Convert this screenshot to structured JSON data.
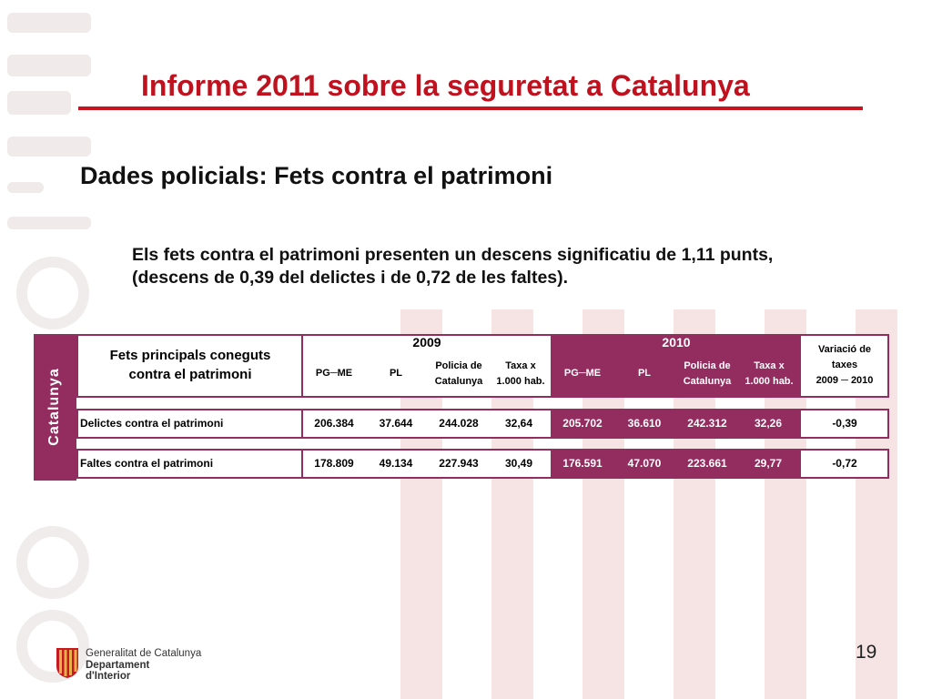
{
  "slide": {
    "title": "Informe 2011 sobre la seguretat a Catalunya",
    "subtitle": "Dades policials: Fets contra el patrimoni",
    "intro": "Els fets contra el patrimoni presenten un descens significatiu de 1,11 punts, (descens de 0,39 del delictes i de 0,72 de les faltes).",
    "page_number": "19"
  },
  "table": {
    "side_label": "Catalunya",
    "facts_header_line1": "Fets principals coneguts",
    "facts_header_line2": "contra el patrimoni",
    "year_2009": "2009",
    "year_2010": "2010",
    "col_pgme": "PG─ME",
    "col_pl": "PL",
    "col_policia_line1": "Policia de",
    "col_policia_line2": "Catalunya",
    "col_taxa_line1": "Taxa x",
    "col_taxa_line2": "1.000 hab.",
    "col_variacio_line1": "Variació de",
    "col_variacio_line2": "taxes",
    "col_variacio_line3": "2009 ─ 2010",
    "rows": [
      {
        "label": "Delictes contra el patrimoni",
        "pgme_2009": "206.384",
        "pl_2009": "37.644",
        "pc_2009": "244.028",
        "taxa_2009": "32,64",
        "pgme_2010": "205.702",
        "pl_2010": "36.610",
        "pc_2010": "242.312",
        "taxa_2010": "32,26",
        "variacio": "-0,39"
      },
      {
        "label": "Faltes contra el patrimoni",
        "pgme_2009": "178.809",
        "pl_2009": "49.134",
        "pc_2009": "227.943",
        "taxa_2009": "30,49",
        "pgme_2010": "176.591",
        "pl_2010": "47.070",
        "pc_2010": "223.661",
        "taxa_2010": "29,77",
        "variacio": "-0,72"
      }
    ]
  },
  "logo": {
    "line1": "Generalitat de Catalunya",
    "line2": "Departament",
    "line3": "d'Interior"
  },
  "colors": {
    "title_red": "#c0111e",
    "table_purple": "#942d5f"
  },
  "icons": {
    "logo": "generalitat-logo-icon"
  }
}
